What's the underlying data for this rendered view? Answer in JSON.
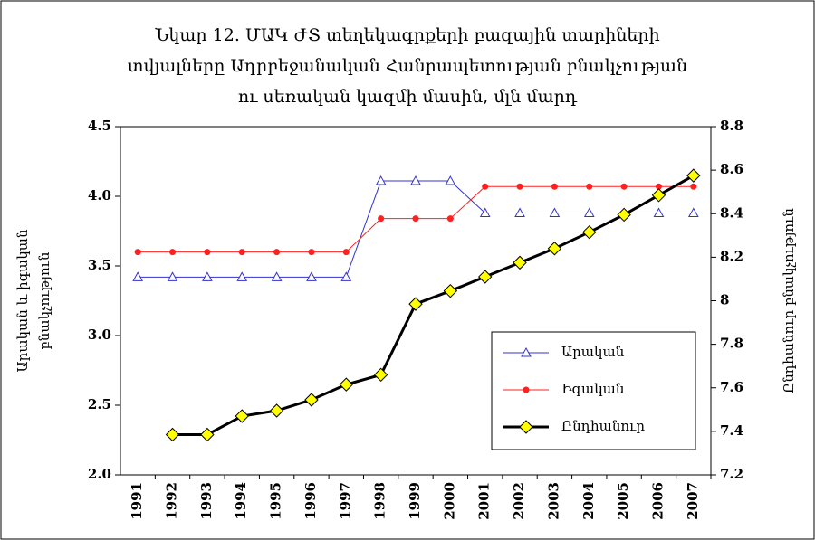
{
  "chart_data": {
    "type": "line",
    "title_lines": [
      "Նկար  12. ՄԱԿ ԺՏ տեղեկագրքերի բազային տարիների",
      "տվյալները Ադրբեջանական Հանրապետության բնակչության",
      "ու սեռական կազմի մասին, մլն մարդ"
    ],
    "y_label_lines": [
      "Արական և իգական",
      "բնակչություն"
    ],
    "y2_label": "Ընդհանուր բնակչություն",
    "categories": [
      "1991",
      "1992",
      "1993",
      "1994",
      "1995",
      "1996",
      "1997",
      "1998",
      "1999",
      "2000",
      "2001",
      "2002",
      "2003",
      "2004",
      "2005",
      "2006",
      "2007"
    ],
    "series": [
      {
        "name": "Արական",
        "color": "#3333cc",
        "marker": "triangle",
        "values": [
          3.42,
          3.42,
          3.42,
          3.42,
          3.42,
          3.42,
          3.42,
          4.11,
          4.11,
          4.11,
          3.88,
          3.88,
          3.88,
          3.88,
          3.88,
          3.88,
          3.88
        ]
      },
      {
        "name": "Իգական",
        "color": "#ff2020",
        "marker": "circle",
        "values": [
          3.6,
          3.6,
          3.6,
          3.6,
          3.6,
          3.6,
          3.6,
          3.84,
          3.84,
          3.84,
          4.07,
          4.07,
          4.07,
          4.07,
          4.07,
          4.07,
          4.07
        ]
      },
      {
        "name": "Ընդհանուր",
        "color": "#000000",
        "marker": "diamond",
        "marker_color": "#ffff00",
        "axis": "y2",
        "values": [
          null,
          7.385,
          7.385,
          7.47,
          7.495,
          7.545,
          7.615,
          7.66,
          7.985,
          8.045,
          8.11,
          8.175,
          8.24,
          8.315,
          8.395,
          8.485,
          8.575
        ]
      }
    ],
    "ylim": [
      2.0,
      4.5
    ],
    "yticks": [
      {
        "value": 2,
        "label": "2.0"
      },
      2.5,
      {
        "value": 3,
        "label": "3.0"
      },
      3.5,
      {
        "value": 4,
        "label": "4.0"
      },
      4.5
    ],
    "y2lim": [
      7.2,
      8.8
    ],
    "y2ticks": [
      7.2,
      7.4,
      7.6,
      7.8,
      8,
      8.2,
      8.4,
      8.6,
      8.8
    ],
    "grid": false
  }
}
